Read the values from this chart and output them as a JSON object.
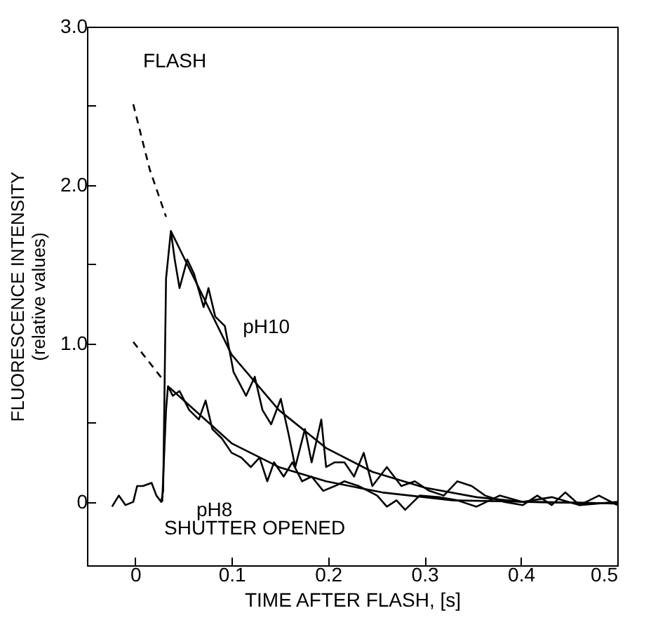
{
  "chart_data": {
    "type": "line",
    "xlabel": "TIME AFTER FLASH, [s]",
    "ylabel": "FLUORESCENCE INTENSITY\n(relative values)",
    "xlim": [
      -0.05,
      0.5
    ],
    "xticks": [
      0,
      0.1,
      0.2,
      0.3,
      0.4,
      0.5
    ],
    "ylim": [
      -0.4,
      3.0
    ],
    "yticks": [
      0,
      {
        "value": 0.5,
        "label": null
      },
      {
        "value": 1,
        "label": "1.0"
      },
      {
        "value": 1.5,
        "label": null
      },
      {
        "value": 2,
        "label": "2.0"
      },
      {
        "value": 2.5,
        "label": null
      },
      {
        "value": 3,
        "label": "3.0"
      }
    ],
    "grid": false,
    "series": [
      {
        "color": "#000000",
        "x": [
          -0.024,
          -0.017,
          -0.01,
          -0.002,
          0.002,
          0.008,
          0.017,
          0.022,
          0.027,
          0.029,
          0.032,
          0.037,
          0.041,
          0.046,
          0.054,
          0.061,
          0.071,
          0.076,
          0.083,
          0.093,
          0.102,
          0.115,
          0.124,
          0.132,
          0.141,
          0.151,
          0.159,
          0.166,
          0.176,
          0.183,
          0.193,
          0.198,
          0.207,
          0.217,
          0.227,
          0.237,
          0.246,
          0.261,
          0.276,
          0.29,
          0.305,
          0.32,
          0.334,
          0.349,
          0.363,
          0.383,
          0.402,
          0.417,
          0.432,
          0.446,
          0.461,
          0.481,
          0.5
        ],
        "values": [
          -0.03,
          0.04,
          -0.02,
          0,
          0.1,
          0.1,
          0.12,
          0.04,
          0,
          0.07,
          1.41,
          1.71,
          1.53,
          1.35,
          1.53,
          1.44,
          1.23,
          1.35,
          1.17,
          1.11,
          0.82,
          0.67,
          0.79,
          0.58,
          0.49,
          0.65,
          0.43,
          0.22,
          0.46,
          0.25,
          0.52,
          0.22,
          0.25,
          0.25,
          0.16,
          0.31,
          0.1,
          0.22,
          0.1,
          0.13,
          0.07,
          0.04,
          0.13,
          0.1,
          0.04,
          0,
          -0.02,
          0.04,
          -0.02,
          0.06,
          -0.02,
          0.04,
          -0.02
        ]
      },
      {
        "color": "#000000",
        "x": [
          0.028,
          0.032,
          0.034,
          0.039,
          0.046,
          0.056,
          0.066,
          0.073,
          0.08,
          0.09,
          0.1,
          0.11,
          0.12,
          0.129,
          0.137,
          0.144,
          0.154,
          0.163,
          0.173,
          0.183,
          0.195,
          0.207,
          0.217,
          0.232,
          0.251,
          0.261,
          0.271,
          0.28,
          0.295,
          0.315,
          0.334,
          0.354,
          0.378,
          0.402,
          0.432,
          0.461,
          0.5
        ],
        "values": [
          0,
          0.58,
          0.73,
          0.67,
          0.7,
          0.58,
          0.52,
          0.64,
          0.46,
          0.4,
          0.31,
          0.28,
          0.22,
          0.28,
          0.13,
          0.25,
          0.16,
          0.25,
          0.13,
          0.16,
          0.07,
          0.1,
          0.13,
          0.1,
          0.04,
          -0.03,
          0.01,
          -0.05,
          0.04,
          0.03,
          0.01,
          -0.03,
          0.04,
          0,
          0.03,
          -0.02,
          0
        ]
      },
      {
        "color": "#000000",
        "x": [
          0.037,
          0.1,
          0.149,
          0.198,
          0.246,
          0.3,
          0.354,
          0.402,
          0.5
        ],
        "values": [
          1.71,
          0.93,
          0.58,
          0.34,
          0.19,
          0.09,
          0.03,
          0,
          -0.01
        ]
      },
      {
        "color": "#000000",
        "x": [
          0.034,
          0.1,
          0.149,
          0.198,
          0.256,
          0.329,
          0.5
        ],
        "values": [
          0.73,
          0.37,
          0.22,
          0.13,
          0.06,
          0.01,
          -0.01
        ]
      },
      {
        "color": "#000000",
        "line_style": "dashed",
        "x": [
          -0.002,
          0.015,
          0.032
        ],
        "values": [
          2.51,
          2.1,
          1.8
        ]
      },
      {
        "color": "#000000",
        "line_style": "dashed",
        "x": [
          -0.002,
          0.029
        ],
        "values": [
          1.01,
          0.77
        ]
      }
    ],
    "annotations": [
      "FLASH",
      "SHUTTER OPENED",
      {
        "text": "pH10",
        "x": 0.1,
        "y": 1.1
      },
      "pH8"
    ]
  }
}
